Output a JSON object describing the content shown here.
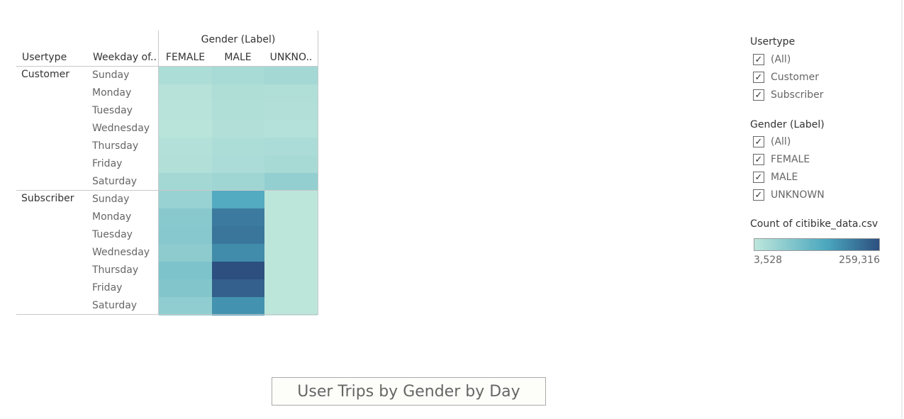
{
  "caption": "User Trips by Gender by Day",
  "table": {
    "column_group_header": "Gender (Label)",
    "row_headers": [
      "Usertype",
      "Weekday of.."
    ],
    "columns": [
      "FEMALE",
      "MALE",
      "UNKNO.."
    ]
  },
  "filters": {
    "usertype": {
      "title": "Usertype",
      "items": [
        {
          "label": "(All)",
          "checked": true
        },
        {
          "label": "Customer",
          "checked": true
        },
        {
          "label": "Subscriber",
          "checked": true
        }
      ]
    },
    "gender": {
      "title": "Gender (Label)",
      "items": [
        {
          "label": "(All)",
          "checked": true
        },
        {
          "label": "FEMALE",
          "checked": true
        },
        {
          "label": "MALE",
          "checked": true
        },
        {
          "label": "UNKNOWN",
          "checked": true
        }
      ]
    }
  },
  "color_legend": {
    "title": "Count of citibike_data.csv",
    "min_label": "3,528",
    "max_label": "259,316",
    "colors": [
      "#bde6db",
      "#4aa7be",
      "#2d4f80"
    ]
  },
  "chart_data": {
    "type": "heatmap",
    "measure": "Count of citibike_data.csv",
    "x": [
      "FEMALE",
      "MALE",
      "UNKNO.."
    ],
    "min": 3528,
    "max": 259316,
    "groups": [
      {
        "usertype": "Customer",
        "rows": [
          {
            "day": "Sunday",
            "values": [
              24000,
              30000,
              36000
            ]
          },
          {
            "day": "Monday",
            "values": [
              12000,
              22000,
              20000
            ]
          },
          {
            "day": "Tuesday",
            "values": [
              10000,
              20000,
              18000
            ]
          },
          {
            "day": "Wednesday",
            "values": [
              9000,
              18000,
              15000
            ]
          },
          {
            "day": "Thursday",
            "values": [
              16000,
              24000,
              26000
            ]
          },
          {
            "day": "Friday",
            "values": [
              18000,
              26000,
              32000
            ]
          },
          {
            "day": "Saturday",
            "values": [
              36000,
              42000,
              58000
            ]
          }
        ]
      },
      {
        "usertype": "Subscriber",
        "rows": [
          {
            "day": "Sunday",
            "values": [
              50000,
              142000,
              3600
            ]
          },
          {
            "day": "Monday",
            "values": [
              72000,
              205000,
              3800
            ]
          },
          {
            "day": "Tuesday",
            "values": [
              74000,
              212000,
              3700
            ]
          },
          {
            "day": "Wednesday",
            "values": [
              66000,
              185000,
              3600
            ]
          },
          {
            "day": "Thursday",
            "values": [
              86000,
              259316,
              3700
            ]
          },
          {
            "day": "Friday",
            "values": [
              80000,
              238000,
              3700
            ]
          },
          {
            "day": "Saturday",
            "values": [
              62000,
              176000,
              3528
            ]
          }
        ]
      }
    ]
  }
}
